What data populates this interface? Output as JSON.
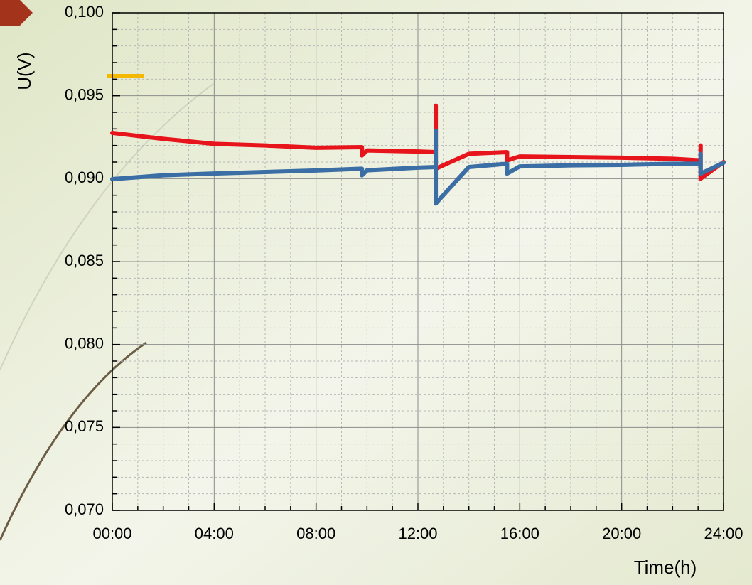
{
  "chart_data": {
    "type": "line",
    "y_label": "U(V)",
    "x_label": "Time(h)",
    "x": [
      0,
      2,
      4,
      6,
      8,
      9.8,
      9.8,
      10,
      12,
      12.7,
      12.7,
      12.7,
      14,
      15.5,
      15.5,
      16,
      18,
      20,
      22,
      23.1,
      23.1,
      23.1,
      24
    ],
    "series": [
      {
        "color": "#e8141c",
        "values": [
          0.09276,
          0.0924,
          0.0921,
          0.092,
          0.09186,
          0.0919,
          0.0914,
          0.0917,
          0.09164,
          0.0916,
          0.0944,
          0.0906,
          0.0915,
          0.0916,
          0.0911,
          0.09134,
          0.0913,
          0.09126,
          0.0912,
          0.0911,
          0.092,
          0.09,
          0.091
        ]
      },
      {
        "color": "#3a6ea5",
        "values": [
          0.08997,
          0.0902,
          0.09031,
          0.0904,
          0.09049,
          0.0906,
          0.0902,
          0.0905,
          0.09066,
          0.0907,
          0.0929,
          0.0885,
          0.0907,
          0.0909,
          0.0903,
          0.09074,
          0.0908,
          0.09083,
          0.0909,
          0.0909,
          0.0915,
          0.0903,
          0.09096
        ]
      }
    ],
    "xlim": [
      0,
      24
    ],
    "xticks": [
      {
        "value": 0,
        "label": "00:00"
      },
      {
        "value": 4,
        "label": "04:00"
      },
      {
        "value": 8,
        "label": "08:00"
      },
      {
        "value": 12,
        "label": "12:00"
      },
      {
        "value": 16,
        "label": "16:00"
      },
      {
        "value": 20,
        "label": "20:00"
      },
      {
        "value": 24,
        "label": "24:00"
      }
    ],
    "ylim": [
      0.07,
      0.1
    ],
    "yticks": [
      {
        "value": 0.07,
        "label": "0,070"
      },
      {
        "value": 0.075,
        "label": "0,075"
      },
      {
        "value": 0.08,
        "label": "0,080"
      },
      {
        "value": 0.085,
        "label": "0,085"
      },
      {
        "value": 0.09,
        "label": "0,090"
      },
      {
        "value": 0.095,
        "label": "0,095"
      },
      {
        "value": 0.1,
        "label": "0,100"
      }
    ],
    "grid": true
  }
}
